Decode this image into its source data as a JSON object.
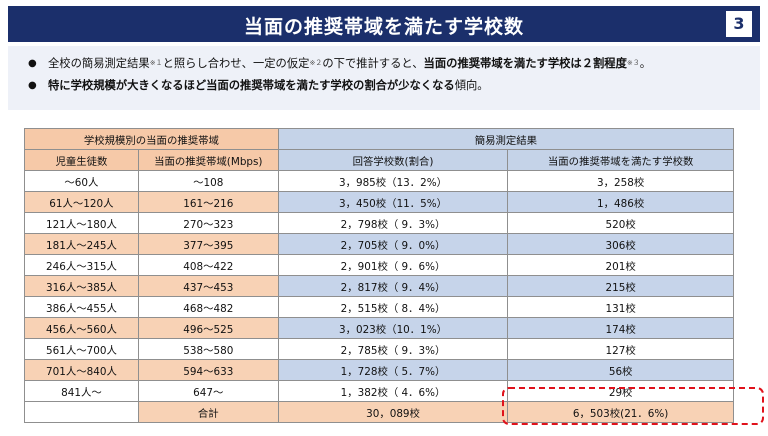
{
  "title": "当面の推奨帯域を満たす学校数",
  "page_number": "3",
  "bullets": [
    {
      "part1": "全校の簡易測定結果",
      "sup1": "※１",
      "part2": "と照らし合わせ、一定の仮定",
      "sup2": "※２",
      "part3": "の下で推計すると、",
      "bold": "当面の推奨帯域を満たす学校は２割程度",
      "sup3": "※３",
      "end": "。"
    },
    {
      "bold": "特に学校規模が大きくなるほど当面の推奨帯域を満たす学校の割合が少なくなる",
      "end": "傾向。"
    }
  ],
  "table": {
    "group_header_left": "学校規模別の当面の推奨帯域",
    "group_header_right": "簡易測定結果",
    "columns": [
      "児童生徒数",
      "当面の推奨帯域(Mbps)",
      "回答学校数(割合)",
      "当面の推奨帯域を満たす学校数"
    ],
    "rows": [
      {
        "students": "〜60人",
        "bandwidth": "〜108",
        "responses": "3，985校（13．2%）",
        "meeting": "3，258校"
      },
      {
        "students": "61人〜120人",
        "bandwidth": "161〜216",
        "responses": "3，450校（11．5%）",
        "meeting": "1，486校"
      },
      {
        "students": "121人〜180人",
        "bandwidth": "270〜323",
        "responses": "2，798校（ 9．3%）",
        "meeting": "520校"
      },
      {
        "students": "181人〜245人",
        "bandwidth": "377〜395",
        "responses": "2，705校（ 9．0%）",
        "meeting": "306校"
      },
      {
        "students": "246人〜315人",
        "bandwidth": "408〜422",
        "responses": "2，901校（ 9．6%）",
        "meeting": "201校"
      },
      {
        "students": "316人〜385人",
        "bandwidth": "437〜453",
        "responses": "2，817校（ 9．4%）",
        "meeting": "215校"
      },
      {
        "students": "386人〜455人",
        "bandwidth": "468〜482",
        "responses": "2，515校（ 8．4%）",
        "meeting": "131校"
      },
      {
        "students": "456人〜560人",
        "bandwidth": "496〜525",
        "responses": "3，023校（10．1%）",
        "meeting": "174校"
      },
      {
        "students": "561人〜700人",
        "bandwidth": "538〜580",
        "responses": "2，785校（ 9．3%）",
        "meeting": "127校"
      },
      {
        "students": "701人〜840人",
        "bandwidth": "594〜633",
        "responses": "1，728校（ 5．7%）",
        "meeting": "56校"
      },
      {
        "students": "841人〜",
        "bandwidth": "647〜",
        "responses": "1，382校（ 4．6%）",
        "meeting": "29校"
      }
    ],
    "total": {
      "label": "合計",
      "responses": "30，089校",
      "meeting": "6，503校(21．6%)"
    }
  },
  "colors": {
    "title_bg": "#1b2f6b",
    "header_orange": "#f6c9a8",
    "header_blue": "#c5d3e8",
    "row_orange": "#f8d2b5",
    "row_blue": "#c6d4ea",
    "highlight_border": "#e0121b"
  }
}
